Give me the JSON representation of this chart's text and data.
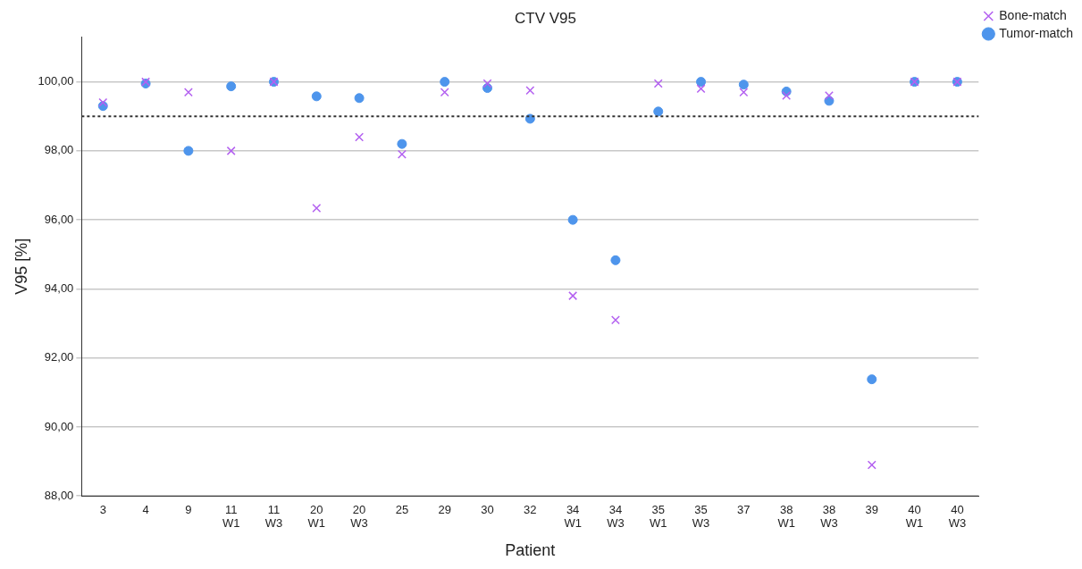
{
  "chart_data": {
    "type": "scatter",
    "title": "CTV V95",
    "xlabel": "Patient",
    "ylabel": "V95 [%]",
    "categories": [
      "3",
      "4",
      "9",
      "11\nW1",
      "11\nW3",
      "20\nW1",
      "20\nW3",
      "25",
      "29",
      "30",
      "32",
      "34\nW1",
      "34\nW3",
      "35\nW1",
      "35\nW3",
      "37",
      "38\nW1",
      "38\nW3",
      "39",
      "40\nW1",
      "40\nW3"
    ],
    "series": [
      {
        "name": "Bone-match",
        "color": "#b360f0",
        "marker": "cross",
        "values": [
          99.4,
          100.0,
          99.7,
          98.0,
          100.0,
          96.34,
          98.4,
          97.9,
          99.7,
          99.95,
          99.75,
          93.8,
          93.1,
          99.95,
          99.8,
          99.7,
          99.6,
          99.6,
          88.9,
          100.0,
          100.0
        ]
      },
      {
        "name": "Tumor-match",
        "color": "#4e95ec",
        "marker": "circle",
        "values": [
          99.3,
          99.95,
          98.0,
          99.87,
          100.0,
          99.58,
          99.53,
          98.2,
          100.0,
          99.82,
          98.93,
          96.0,
          94.83,
          99.14,
          100.0,
          99.92,
          99.72,
          99.45,
          91.38,
          100.0,
          100.0
        ]
      }
    ],
    "ylim": [
      88,
      101.3
    ],
    "yticks": [
      {
        "value": 88,
        "label": "88,00"
      },
      {
        "value": 90,
        "label": "90,00"
      },
      {
        "value": 92,
        "label": "92,00"
      },
      {
        "value": 94,
        "label": "94,00"
      },
      {
        "value": 96,
        "label": "96,00"
      },
      {
        "value": 98,
        "label": "98,00"
      },
      {
        "value": 100,
        "label": "100,00"
      }
    ],
    "grid": "y",
    "legend": "top right",
    "ref_lines": [
      {
        "axis": "y",
        "value": 99,
        "color": "#333333",
        "line_style": "dotted"
      }
    ]
  }
}
